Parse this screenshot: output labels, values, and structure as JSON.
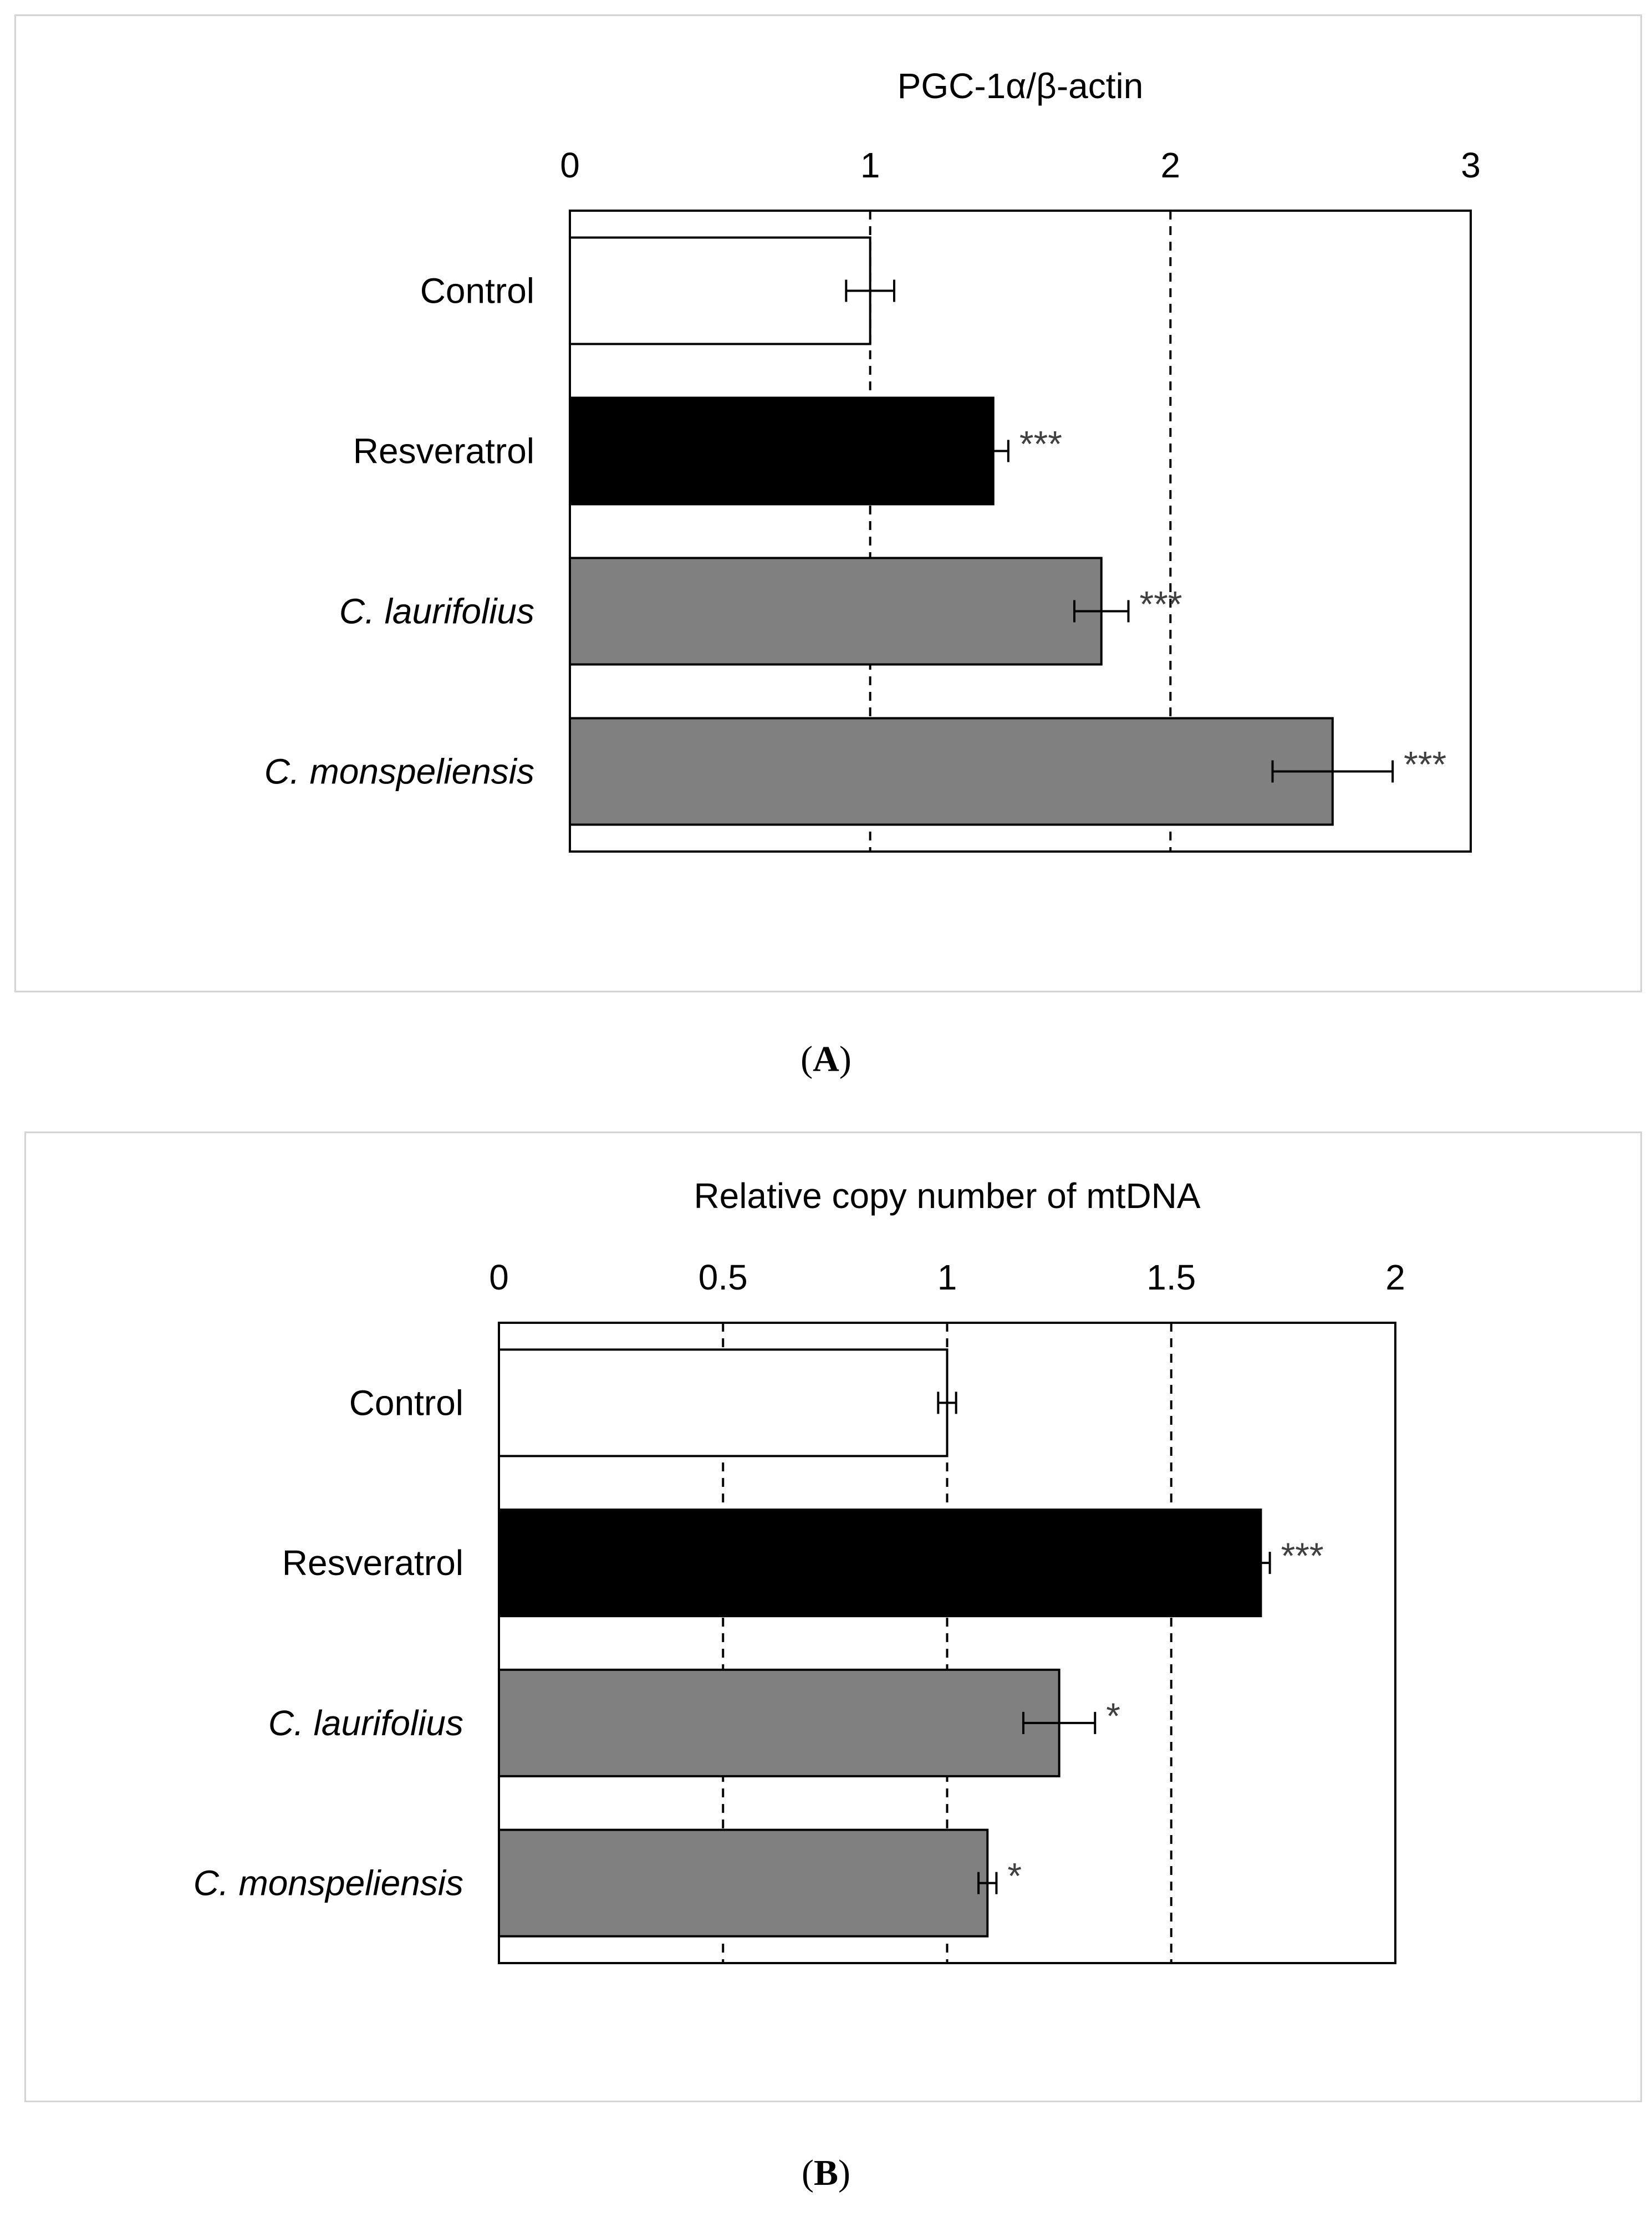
{
  "chart_data": [
    {
      "type": "bar",
      "orientation": "horizontal",
      "panel_label": "A",
      "xlabel": "PGC-1α/β-actin",
      "xlim": [
        0,
        3
      ],
      "xticks": [
        0,
        1,
        2,
        3
      ],
      "tick_labels": [
        "0",
        "1",
        "2",
        "3"
      ],
      "grid": "dashed vertical lines at 1 and 2",
      "categories": [
        "Control",
        "Resveratrol",
        "C. laurifolius",
        "C. monspeliensis"
      ],
      "italic_categories": [
        false,
        false,
        true,
        true
      ],
      "values": [
        1.0,
        1.41,
        1.77,
        2.54
      ],
      "error": [
        0.08,
        0.05,
        0.09,
        0.2
      ],
      "colors": [
        "#ffffff",
        "#000000",
        "#808080",
        "#808080"
      ],
      "significance": [
        "",
        "***",
        "***",
        "***"
      ]
    },
    {
      "type": "bar",
      "orientation": "horizontal",
      "panel_label": "B",
      "xlabel": "Relative copy number of mtDNA",
      "xlim": [
        0,
        2
      ],
      "xticks": [
        0,
        0.5,
        1,
        1.5,
        2
      ],
      "tick_labels": [
        "0",
        "0.5",
        "1",
        "1.5",
        "2"
      ],
      "grid": "dashed vertical lines at 0.5, 1 and 1.5",
      "categories": [
        "Control",
        "Resveratrol",
        "C. laurifolius",
        "C. monspeliensis"
      ],
      "italic_categories": [
        false,
        false,
        true,
        true
      ],
      "values": [
        1.0,
        1.7,
        1.25,
        1.09
      ],
      "error": [
        0.02,
        0.02,
        0.08,
        0.02
      ],
      "colors": [
        "#ffffff",
        "#000000",
        "#808080",
        "#808080"
      ],
      "significance": [
        "",
        "***",
        "*",
        "*"
      ]
    }
  ]
}
